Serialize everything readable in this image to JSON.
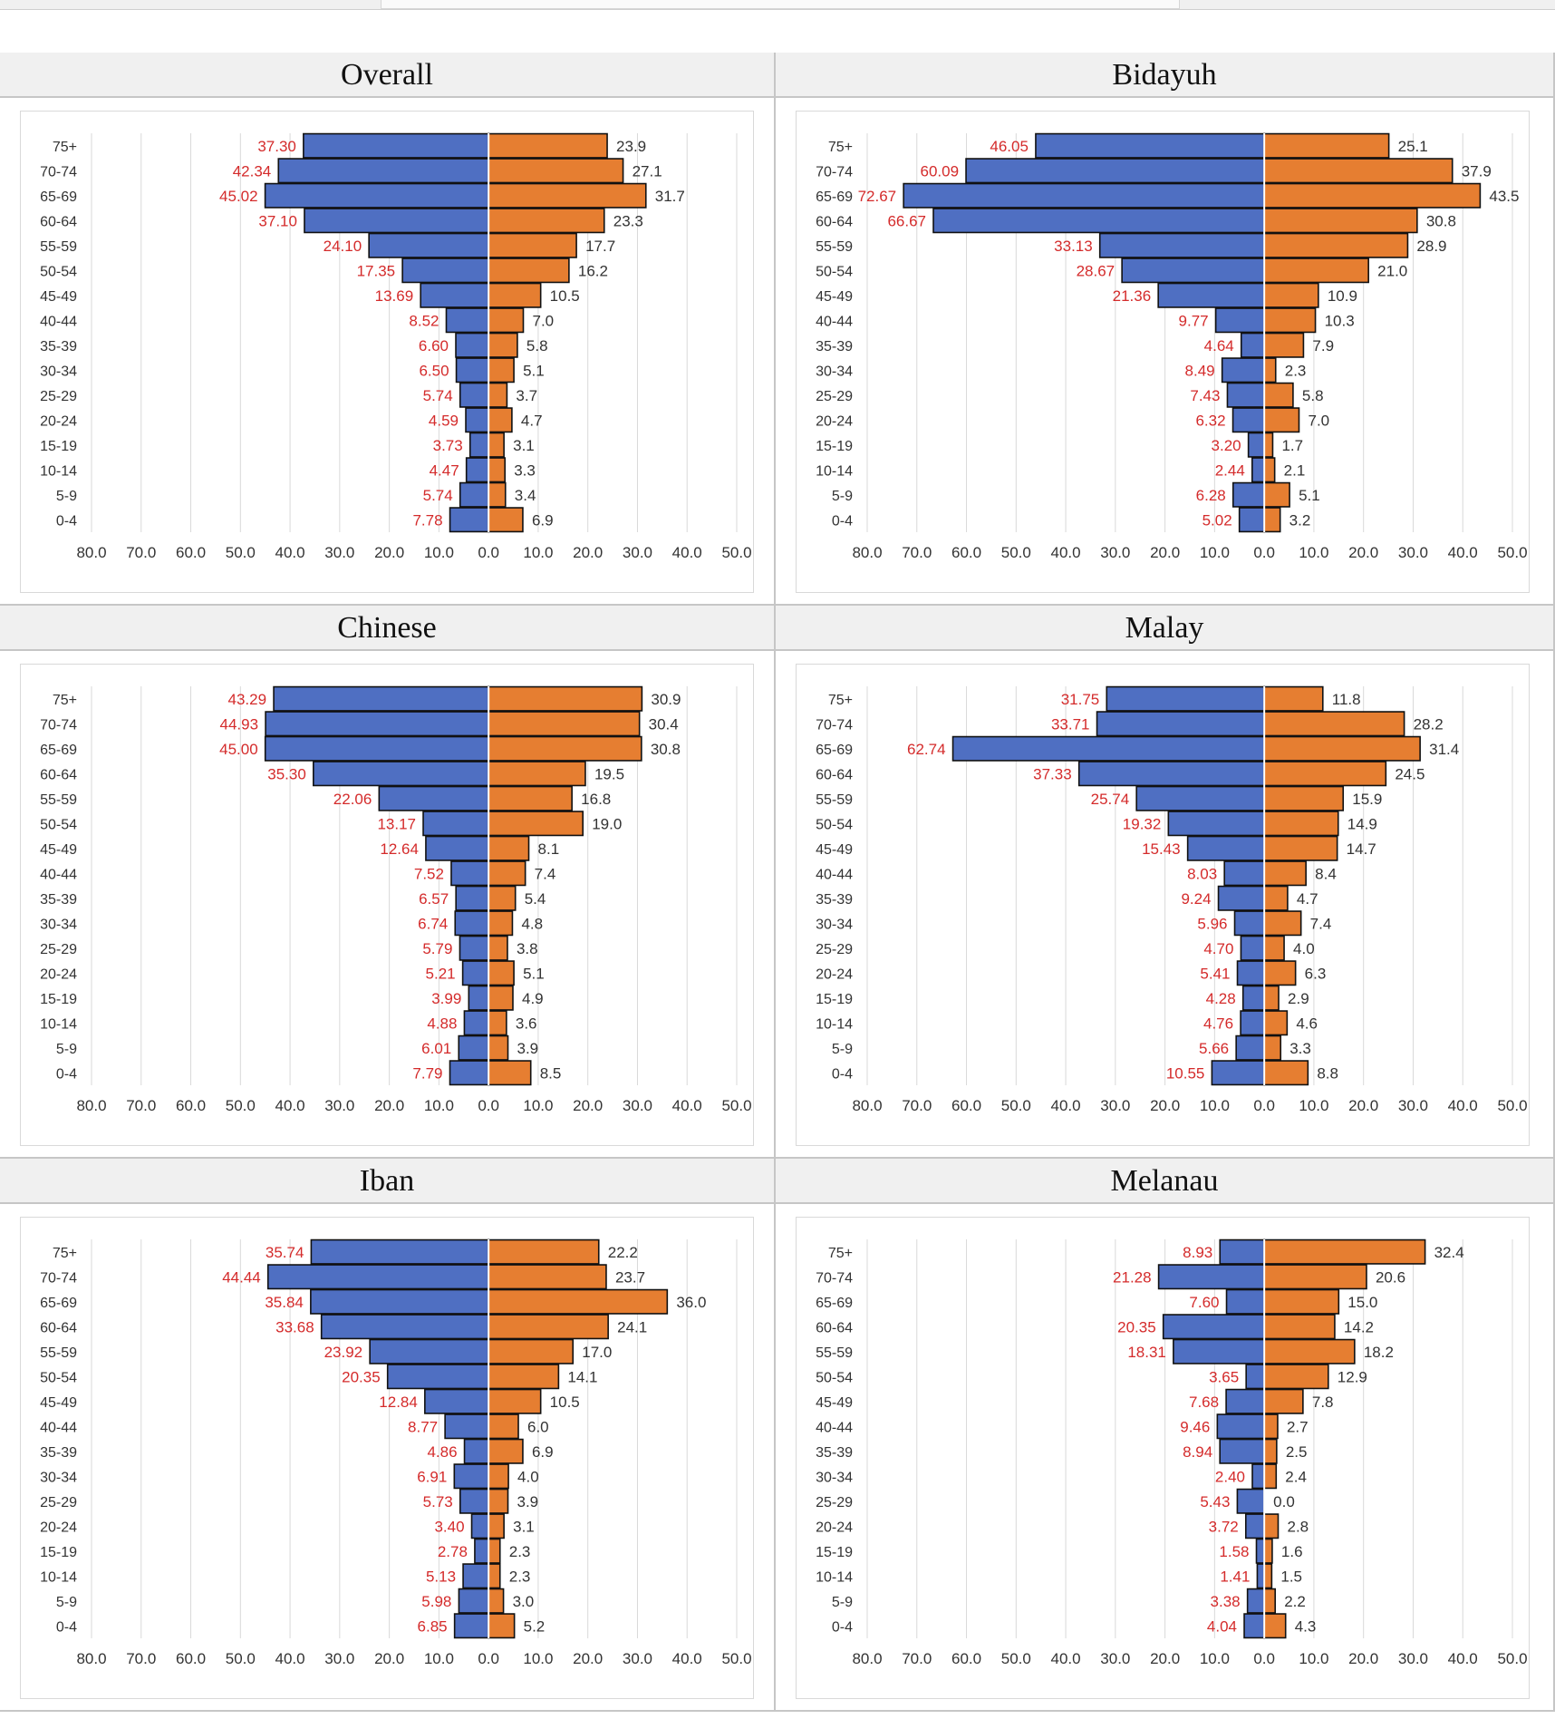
{
  "colors": {
    "left_bar": "#4f6fc2",
    "right_bar": "#e67e31",
    "left_label": "#d42b2b",
    "right_label": "#333333",
    "grid": "#d9d9d9",
    "axis_text": "#333333"
  },
  "chart_data": [
    {
      "type": "bar",
      "orientation": "horizontal-population-pyramid",
      "title": "Overall",
      "categories": [
        "75+",
        "70-74",
        "65-69",
        "60-64",
        "55-59",
        "50-54",
        "45-49",
        "40-44",
        "35-39",
        "30-34",
        "25-29",
        "20-24",
        "15-19",
        "10-14",
        "5-9",
        "0-4"
      ],
      "series": [
        {
          "values": [
            37.3,
            42.34,
            45.02,
            37.1,
            24.1,
            17.35,
            13.69,
            8.52,
            6.6,
            6.5,
            5.74,
            4.59,
            3.73,
            4.47,
            5.74,
            7.78
          ]
        },
        {
          "values": [
            23.9,
            27.1,
            31.7,
            23.3,
            17.7,
            16.2,
            10.5,
            7.0,
            5.8,
            5.1,
            3.7,
            4.7,
            3.1,
            3.3,
            3.4,
            6.9
          ]
        }
      ],
      "left_labels": [
        "37.30",
        "42.34",
        "45.02",
        "37.10",
        "24.10",
        "17.35",
        "13.69",
        "8.52",
        "6.60",
        "6.50",
        "5.74",
        "4.59",
        "3.73",
        "4.47",
        "5.74",
        "7.78"
      ],
      "right_labels": [
        "23.9",
        "27.1",
        "31.7",
        "23.3",
        "17.7",
        "16.2",
        "10.5",
        "7.0",
        "5.8",
        "5.1",
        "3.7",
        "4.7",
        "3.1",
        "3.3",
        "3.4",
        "6.9"
      ],
      "xlim": [
        -80,
        50
      ],
      "x_tick_labels": [
        "80.0",
        "70.0",
        "60.0",
        "50.0",
        "40.0",
        "30.0",
        "20.0",
        "10.0",
        "0.0",
        "10.0",
        "20.0",
        "30.0",
        "40.0",
        "50.0"
      ],
      "grid": "vertical"
    },
    {
      "type": "bar",
      "orientation": "horizontal-population-pyramid",
      "title": "Bidayuh",
      "categories": [
        "75+",
        "70-74",
        "65-69",
        "60-64",
        "55-59",
        "50-54",
        "45-49",
        "40-44",
        "35-39",
        "30-34",
        "25-29",
        "20-24",
        "15-19",
        "10-14",
        "5-9",
        "0-4"
      ],
      "series": [
        {
          "values": [
            46.05,
            60.09,
            72.67,
            66.67,
            33.13,
            28.67,
            21.36,
            9.77,
            4.64,
            8.49,
            7.43,
            6.32,
            3.2,
            2.44,
            6.28,
            5.02
          ]
        },
        {
          "values": [
            25.1,
            37.9,
            43.5,
            30.8,
            28.9,
            21.0,
            10.9,
            10.3,
            7.9,
            2.3,
            5.8,
            7.0,
            1.7,
            2.1,
            5.1,
            3.2
          ]
        }
      ],
      "left_labels": [
        "46.05",
        "60.09",
        "72.67",
        "66.67",
        "33.13",
        "28.67",
        "21.36",
        "9.77",
        "4.64",
        "8.49",
        "7.43",
        "6.32",
        "3.20",
        "2.44",
        "6.28",
        "5.02"
      ],
      "right_labels": [
        "25.1",
        "37.9",
        "43.5",
        "30.8",
        "28.9",
        "21.0",
        "10.9",
        "10.3",
        "7.9",
        "2.3",
        "5.8",
        "7.0",
        "1.7",
        "2.1",
        "5.1",
        "3.2"
      ],
      "xlim": [
        -80,
        50
      ],
      "x_tick_labels": [
        "80.0",
        "70.0",
        "60.0",
        "50.0",
        "40.0",
        "30.0",
        "20.0",
        "10.0",
        "0.0",
        "10.0",
        "20.0",
        "30.0",
        "40.0",
        "50.0"
      ],
      "grid": "vertical"
    },
    {
      "type": "bar",
      "orientation": "horizontal-population-pyramid",
      "title": "Chinese",
      "categories": [
        "75+",
        "70-74",
        "65-69",
        "60-64",
        "55-59",
        "50-54",
        "45-49",
        "40-44",
        "35-39",
        "30-34",
        "25-29",
        "20-24",
        "15-19",
        "10-14",
        "5-9",
        "0-4"
      ],
      "series": [
        {
          "values": [
            43.29,
            44.93,
            45.0,
            35.3,
            22.06,
            13.17,
            12.64,
            7.52,
            6.57,
            6.74,
            5.79,
            5.21,
            3.99,
            4.88,
            6.01,
            7.79
          ]
        },
        {
          "values": [
            30.9,
            30.4,
            30.8,
            19.5,
            16.8,
            19.0,
            8.1,
            7.4,
            5.4,
            4.8,
            3.8,
            5.1,
            4.9,
            3.6,
            3.9,
            8.5
          ]
        }
      ],
      "left_labels": [
        "43.29",
        "44.93",
        "45.00",
        "35.30",
        "22.06",
        "13.17",
        "12.64",
        "7.52",
        "6.57",
        "6.74",
        "5.79",
        "5.21",
        "3.99",
        "4.88",
        "6.01",
        "7.79"
      ],
      "right_labels": [
        "30.9",
        "30.4",
        "30.8",
        "19.5",
        "16.8",
        "19.0",
        "8.1",
        "7.4",
        "5.4",
        "4.8",
        "3.8",
        "5.1",
        "4.9",
        "3.6",
        "3.9",
        "8.5"
      ],
      "xlim": [
        -80,
        50
      ],
      "x_tick_labels": [
        "80.0",
        "70.0",
        "60.0",
        "50.0",
        "40.0",
        "30.0",
        "20.0",
        "10.0",
        "0.0",
        "10.0",
        "20.0",
        "30.0",
        "40.0",
        "50.0"
      ],
      "grid": "vertical"
    },
    {
      "type": "bar",
      "orientation": "horizontal-population-pyramid",
      "title": "Malay",
      "categories": [
        "75+",
        "70-74",
        "65-69",
        "60-64",
        "55-59",
        "50-54",
        "45-49",
        "40-44",
        "35-39",
        "30-34",
        "25-29",
        "20-24",
        "15-19",
        "10-14",
        "5-9",
        "0-4"
      ],
      "series": [
        {
          "values": [
            31.75,
            33.71,
            62.74,
            37.33,
            25.74,
            19.32,
            15.43,
            8.03,
            9.24,
            5.96,
            4.7,
            5.41,
            4.28,
            4.76,
            5.66,
            10.55
          ]
        },
        {
          "values": [
            11.8,
            28.2,
            31.4,
            24.5,
            15.9,
            14.9,
            14.7,
            8.4,
            4.7,
            7.4,
            4.0,
            6.3,
            2.9,
            4.6,
            3.3,
            8.8
          ]
        }
      ],
      "left_labels": [
        "31.75",
        "33.71",
        "62.74",
        "37.33",
        "25.74",
        "19.32",
        "15.43",
        "8.03",
        "9.24",
        "5.96",
        "4.70",
        "5.41",
        "4.28",
        "4.76",
        "5.66",
        "10.55"
      ],
      "right_labels": [
        "11.8",
        "28.2",
        "31.4",
        "24.5",
        "15.9",
        "14.9",
        "14.7",
        "8.4",
        "4.7",
        "7.4",
        "4.0",
        "6.3",
        "2.9",
        "4.6",
        "3.3",
        "8.8"
      ],
      "xlim": [
        -80,
        50
      ],
      "x_tick_labels": [
        "80.0",
        "70.0",
        "60.0",
        "50.0",
        "40.0",
        "30.0",
        "20.0",
        "10.0",
        "0.0",
        "10.0",
        "20.0",
        "30.0",
        "40.0",
        "50.0"
      ],
      "grid": "vertical"
    },
    {
      "type": "bar",
      "orientation": "horizontal-population-pyramid",
      "title": "Iban",
      "categories": [
        "75+",
        "70-74",
        "65-69",
        "60-64",
        "55-59",
        "50-54",
        "45-49",
        "40-44",
        "35-39",
        "30-34",
        "25-29",
        "20-24",
        "15-19",
        "10-14",
        "5-9",
        "0-4"
      ],
      "series": [
        {
          "values": [
            35.74,
            44.44,
            35.84,
            33.68,
            23.92,
            20.35,
            12.84,
            8.77,
            4.86,
            6.91,
            5.73,
            3.4,
            2.78,
            5.13,
            5.98,
            6.85
          ]
        },
        {
          "values": [
            22.2,
            23.7,
            36.0,
            24.1,
            17.0,
            14.1,
            10.5,
            6.0,
            6.9,
            4.0,
            3.9,
            3.1,
            2.3,
            2.3,
            3.0,
            5.2
          ]
        }
      ],
      "left_labels": [
        "35.74",
        "44.44",
        "35.84",
        "33.68",
        "23.92",
        "20.35",
        "12.84",
        "8.77",
        "4.86",
        "6.91",
        "5.73",
        "3.40",
        "2.78",
        "5.13",
        "5.98",
        "6.85"
      ],
      "right_labels": [
        "22.2",
        "23.7",
        "36.0",
        "24.1",
        "17.0",
        "14.1",
        "10.5",
        "6.0",
        "6.9",
        "4.0",
        "3.9",
        "3.1",
        "2.3",
        "2.3",
        "3.0",
        "5.2"
      ],
      "xlim": [
        -80,
        50
      ],
      "x_tick_labels": [
        "80.0",
        "70.0",
        "60.0",
        "50.0",
        "40.0",
        "30.0",
        "20.0",
        "10.0",
        "0.0",
        "10.0",
        "20.0",
        "30.0",
        "40.0",
        "50.0"
      ],
      "grid": "vertical"
    },
    {
      "type": "bar",
      "orientation": "horizontal-population-pyramid",
      "title": "Melanau",
      "categories": [
        "75+",
        "70-74",
        "65-69",
        "60-64",
        "55-59",
        "50-54",
        "45-49",
        "40-44",
        "35-39",
        "30-34",
        "25-29",
        "20-24",
        "15-19",
        "10-14",
        "5-9",
        "0-4"
      ],
      "series": [
        {
          "values": [
            8.93,
            21.28,
            7.6,
            20.35,
            18.31,
            3.65,
            7.68,
            9.46,
            8.94,
            2.4,
            5.43,
            3.72,
            1.58,
            1.41,
            3.38,
            4.04
          ]
        },
        {
          "values": [
            32.4,
            20.6,
            15.0,
            14.2,
            18.2,
            12.9,
            7.8,
            2.7,
            2.5,
            2.4,
            0.0,
            2.8,
            1.6,
            1.5,
            2.2,
            4.3
          ]
        }
      ],
      "left_labels": [
        "8.93",
        "21.28",
        "7.60",
        "20.35",
        "18.31",
        "3.65",
        "7.68",
        "9.46",
        "8.94",
        "2.40",
        "5.43",
        "3.72",
        "1.58",
        "1.41",
        "3.38",
        "4.04"
      ],
      "right_labels": [
        "32.4",
        "20.6",
        "15.0",
        "14.2",
        "18.2",
        "12.9",
        "7.8",
        "2.7",
        "2.5",
        "2.4",
        "0.0",
        "2.8",
        "1.6",
        "1.5",
        "2.2",
        "4.3"
      ],
      "xlim": [
        -80,
        50
      ],
      "x_tick_labels": [
        "80.0",
        "70.0",
        "60.0",
        "50.0",
        "40.0",
        "30.0",
        "20.0",
        "10.0",
        "0.0",
        "10.0",
        "20.0",
        "30.0",
        "40.0",
        "50.0"
      ],
      "grid": "vertical"
    }
  ]
}
